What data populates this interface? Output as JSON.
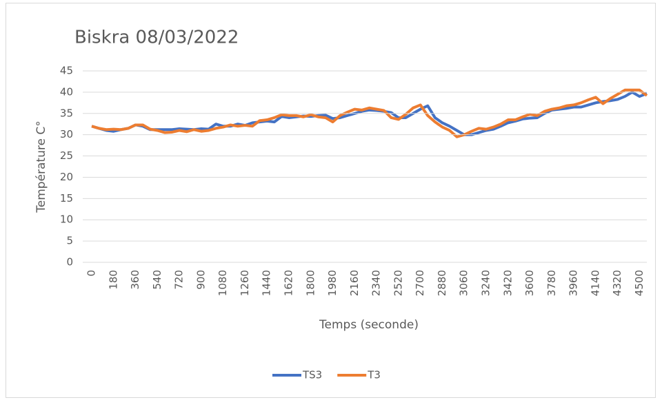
{
  "chart_data": {
    "type": "line",
    "title": "Biskra 08/03/2022",
    "x_label": "Temps (seconde)",
    "y_label": "Température C°",
    "x": [
      0,
      60,
      120,
      180,
      240,
      300,
      360,
      420,
      480,
      540,
      600,
      660,
      720,
      780,
      840,
      900,
      960,
      1020,
      1080,
      1140,
      1200,
      1260,
      1320,
      1380,
      1440,
      1500,
      1560,
      1620,
      1680,
      1740,
      1800,
      1860,
      1920,
      1980,
      2040,
      2100,
      2160,
      2220,
      2280,
      2340,
      2400,
      2460,
      2520,
      2580,
      2640,
      2700,
      2760,
      2820,
      2880,
      2940,
      3000,
      3060,
      3120,
      3180,
      3240,
      3300,
      3360,
      3420,
      3480,
      3540,
      3600,
      3660,
      3720,
      3780,
      3840,
      3900,
      3960,
      4020,
      4080,
      4140,
      4200,
      4260,
      4320,
      4380,
      4440,
      4500,
      4560
    ],
    "xlim": [
      0,
      4560
    ],
    "xticks": [
      0,
      180,
      360,
      540,
      720,
      900,
      1080,
      1260,
      1440,
      1620,
      1800,
      1980,
      2160,
      2340,
      2520,
      2700,
      2880,
      3060,
      3240,
      3420,
      3600,
      3780,
      3960,
      4140,
      4320,
      4500
    ],
    "ylim": [
      0,
      45
    ],
    "yticks": [
      0,
      5,
      10,
      15,
      20,
      25,
      30,
      35,
      40,
      45
    ],
    "grid": true,
    "legend": "bottom",
    "series": [
      {
        "name": "TS3",
        "color": "#4472c4",
        "values": [
          32,
          31.5,
          31,
          30.8,
          31.2,
          31.5,
          32.3,
          32,
          31.2,
          31.2,
          31.2,
          31.2,
          31.4,
          31.3,
          31.2,
          31.4,
          31.3,
          32.5,
          32,
          32,
          32.5,
          32.2,
          32.8,
          33,
          33.2,
          33,
          34.3,
          34,
          34.2,
          34.4,
          34.3,
          34.5,
          34.6,
          33.8,
          34,
          34.5,
          35,
          35.5,
          35.8,
          35.7,
          35.5,
          35.2,
          34,
          34,
          35,
          36,
          36.8,
          34,
          32.8,
          32,
          31,
          30,
          30,
          30.5,
          31,
          31.3,
          32,
          32.8,
          33.2,
          33.7,
          33.9,
          34,
          35,
          35.8,
          36,
          36.2,
          36.5,
          36.5,
          37,
          37.5,
          37.8,
          38,
          38.3,
          39,
          40,
          39,
          39.7
        ]
      },
      {
        "name": "T3",
        "color": "#ed7d31",
        "values": [
          32,
          31.5,
          31.2,
          31.3,
          31.2,
          31.5,
          32.3,
          32.3,
          31.3,
          31,
          30.5,
          30.6,
          31,
          30.7,
          31.2,
          30.8,
          31,
          31.5,
          31.8,
          32.3,
          32,
          32.2,
          32,
          33.3,
          33.5,
          34,
          34.7,
          34.5,
          34.5,
          34.2,
          34.7,
          34.2,
          34,
          33,
          34.5,
          35.3,
          36,
          35.8,
          36.3,
          36,
          35.7,
          34,
          33.6,
          34.8,
          36.3,
          37,
          34.5,
          33,
          31.8,
          31,
          29.5,
          30,
          30.8,
          31.5,
          31.3,
          31.8,
          32.5,
          33.5,
          33.5,
          34.2,
          34.8,
          34.5,
          35.5,
          36,
          36.3,
          36.8,
          37,
          37.5,
          38.2,
          38.8,
          37.3,
          38.5,
          39.5,
          40.5,
          40.5,
          40.5,
          39.2
        ]
      }
    ]
  }
}
